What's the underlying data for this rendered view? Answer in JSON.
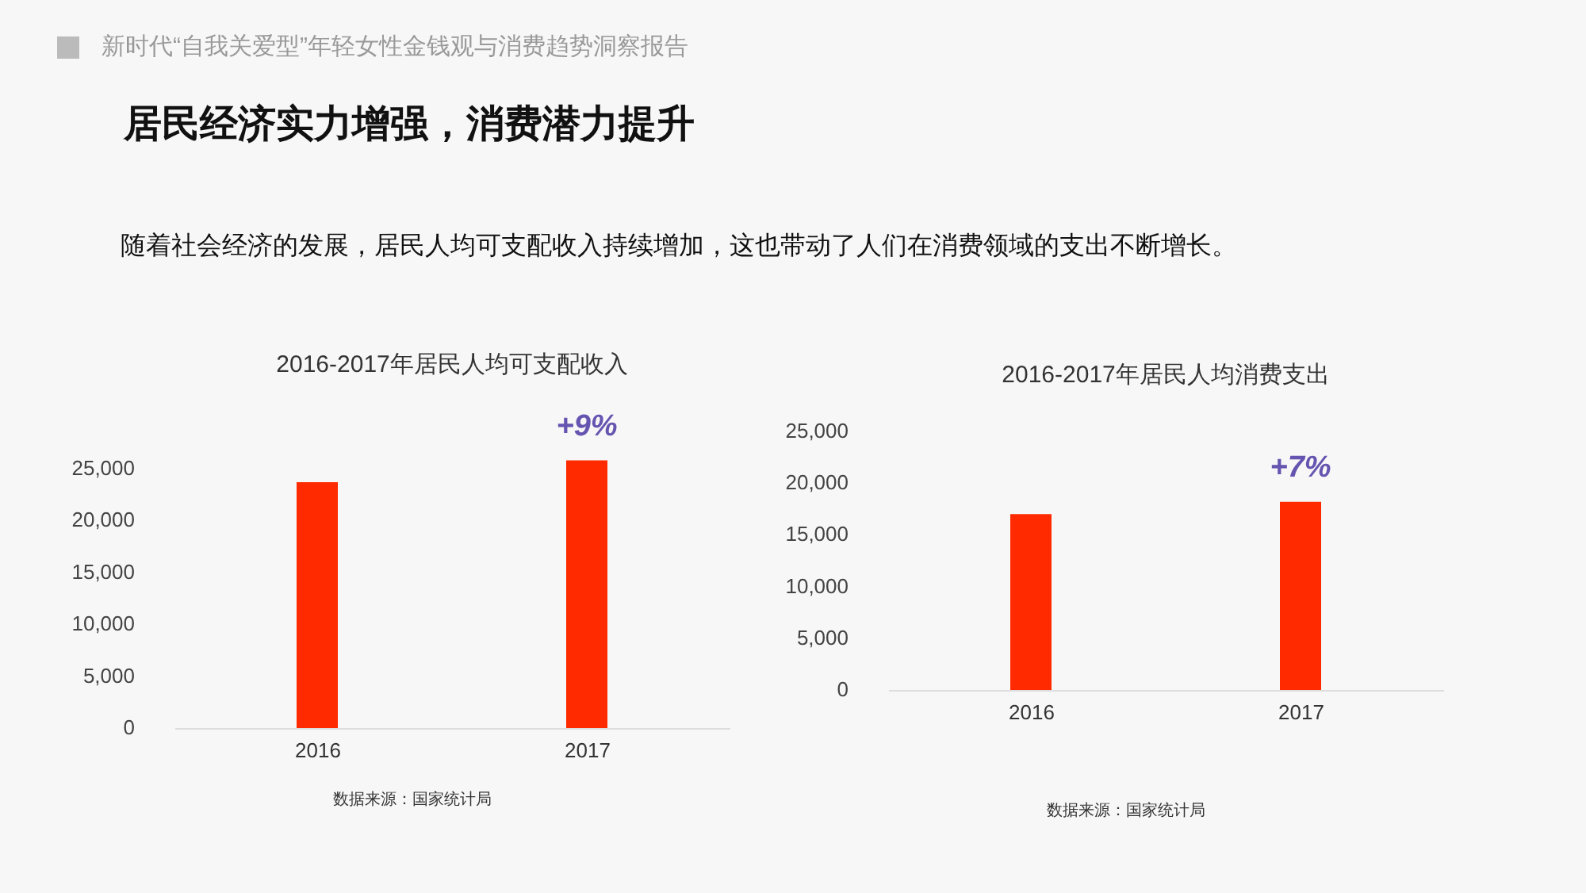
{
  "chart_data": [
    {
      "type": "other",
      "title": "居民经济实力增强，消费潜力提升",
      "subtitle": "随着社会经济的发展，居民人均可支配收入持续增加，这也带动了人们在消费领域的支出不断增长。",
      "annotations": [
        "新时代“自我关爱型”年轻女性金钱观与消费趋势洞察报告"
      ]
    },
    {
      "type": "bar",
      "title": "2016-2017年居民人均可支配收入",
      "categories": [
        "2016",
        "2017"
      ],
      "values": [
        23700,
        25800
      ],
      "color": "#ff2a00",
      "ylim": [
        0,
        26000
      ],
      "yticks": [
        0,
        {
          "value": 5000,
          "label": "5,000"
        },
        {
          "value": 10000,
          "label": "10,000"
        },
        {
          "value": 15000,
          "label": "15,000"
        },
        {
          "value": 20000,
          "label": "20,000"
        },
        {
          "value": 25000,
          "label": "25,000"
        }
      ],
      "grid": false,
      "annotations": [
        {
          "text": "+9%",
          "x": "2017",
          "y": 25800
        },
        "数据来源：国家统计局"
      ]
    },
    {
      "type": "bar",
      "title": "2016-2017年居民人均消费支出",
      "categories": [
        "2016",
        "2017"
      ],
      "values": [
        17000,
        18200
      ],
      "color": "#ff2a00",
      "ylim": [
        0,
        25000
      ],
      "yticks": [
        0,
        {
          "value": 5000,
          "label": "5,000"
        },
        {
          "value": 10000,
          "label": "10,000"
        },
        {
          "value": 15000,
          "label": "15,000"
        },
        {
          "value": 20000,
          "label": "20,000"
        },
        {
          "value": 25000,
          "label": "25,000"
        }
      ],
      "grid": false,
      "annotations": [
        {
          "text": "+7%",
          "x": "2017",
          "y": 18200
        },
        "数据来源：国家统计局"
      ]
    }
  ]
}
